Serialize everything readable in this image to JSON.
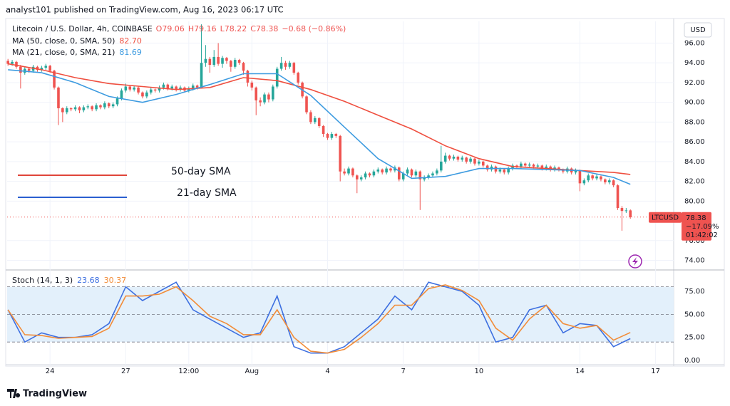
{
  "header": "analyst101 published on TradingView.com, Aug 16, 2023 06:17 UTC",
  "footer": "TradingView",
  "chart_data": [
    {
      "type": "candlestick",
      "title": "Litecoin / U.S. Dollar, 4h, COINBASE",
      "ohlc_text": [
        "O79.06",
        "H79.16",
        "L78.22",
        "C78.38",
        "−0.68 (−0.86%)"
      ],
      "currency": "USD",
      "up_color": "#26a69a",
      "down_color": "#ef5350",
      "candles": [
        [
          94.2,
          94.4,
          93.7,
          93.9
        ],
        [
          93.9,
          94.3,
          93.7,
          94.1
        ],
        [
          94.1,
          94.2,
          93.4,
          93.6
        ],
        [
          93.6,
          93.8,
          91.4,
          93.0
        ],
        [
          93.0,
          93.6,
          92.8,
          93.4
        ],
        [
          93.4,
          93.5,
          93.0,
          93.2
        ],
        [
          93.2,
          93.8,
          93.0,
          93.6
        ],
        [
          93.6,
          93.7,
          93.1,
          93.3
        ],
        [
          93.3,
          93.7,
          93.1,
          93.5
        ],
        [
          93.5,
          93.9,
          93.3,
          93.7
        ],
        [
          93.7,
          93.8,
          93.0,
          93.2
        ],
        [
          93.2,
          93.3,
          91.3,
          91.5
        ],
        [
          91.5,
          91.6,
          87.7,
          89.4
        ],
        [
          89.4,
          89.5,
          88.0,
          89.0
        ],
        [
          89.0,
          89.6,
          88.8,
          89.4
        ],
        [
          89.4,
          89.5,
          89.1,
          89.3
        ],
        [
          89.3,
          89.7,
          89.1,
          89.5
        ],
        [
          89.5,
          89.6,
          88.9,
          89.2
        ],
        [
          89.2,
          89.7,
          89.0,
          89.5
        ],
        [
          89.5,
          89.8,
          89.3,
          89.6
        ],
        [
          89.6,
          89.7,
          89.1,
          89.3
        ],
        [
          89.3,
          89.9,
          89.1,
          89.7
        ],
        [
          89.7,
          89.8,
          89.3,
          89.5
        ],
        [
          89.5,
          90.1,
          89.3,
          89.9
        ],
        [
          89.9,
          90.0,
          89.4,
          89.6
        ],
        [
          89.6,
          90.0,
          89.4,
          89.8
        ],
        [
          89.8,
          90.6,
          89.6,
          90.4
        ],
        [
          90.4,
          91.4,
          90.2,
          91.2
        ],
        [
          91.2,
          91.9,
          91.0,
          91.6
        ],
        [
          91.6,
          91.7,
          91.1,
          91.3
        ],
        [
          91.3,
          91.7,
          91.1,
          91.5
        ],
        [
          91.5,
          91.6,
          90.8,
          91.0
        ],
        [
          91.0,
          91.1,
          90.4,
          90.6
        ],
        [
          90.6,
          91.2,
          90.4,
          91.0
        ],
        [
          91.0,
          91.5,
          90.8,
          91.3
        ],
        [
          91.3,
          91.4,
          91.0,
          91.2
        ],
        [
          91.2,
          91.7,
          91.0,
          91.5
        ],
        [
          91.5,
          92.0,
          91.3,
          91.8
        ],
        [
          91.8,
          91.9,
          91.2,
          91.4
        ],
        [
          91.4,
          91.8,
          91.2,
          91.6
        ],
        [
          91.6,
          91.7,
          91.1,
          91.3
        ],
        [
          91.3,
          91.7,
          91.1,
          91.5
        ],
        [
          91.5,
          91.6,
          91.0,
          91.2
        ],
        [
          91.2,
          91.6,
          91.0,
          91.4
        ],
        [
          91.4,
          91.9,
          91.2,
          91.7
        ],
        [
          91.7,
          91.8,
          91.3,
          91.5
        ],
        [
          91.5,
          97.9,
          91.4,
          94.0
        ],
        [
          94.0,
          95.8,
          93.6,
          94.4
        ],
        [
          94.4,
          94.6,
          93.0,
          93.8
        ],
        [
          93.8,
          95.3,
          93.6,
          94.6
        ],
        [
          94.6,
          96.0,
          93.7,
          93.9
        ],
        [
          93.9,
          94.7,
          93.5,
          94.5
        ],
        [
          94.5,
          94.6,
          93.9,
          94.2
        ],
        [
          94.2,
          94.3,
          93.1,
          93.6
        ],
        [
          93.6,
          94.5,
          93.4,
          94.3
        ],
        [
          94.3,
          94.4,
          93.8,
          94.0
        ],
        [
          94.0,
          94.1,
          92.8,
          93.2
        ],
        [
          93.2,
          93.3,
          91.6,
          92.0
        ],
        [
          92.0,
          92.2,
          91.2,
          91.5
        ],
        [
          91.5,
          91.6,
          88.7,
          90.2
        ],
        [
          90.2,
          90.5,
          89.6,
          90.0
        ],
        [
          90.0,
          91.0,
          89.8,
          90.8
        ],
        [
          90.8,
          91.0,
          90.0,
          90.3
        ],
        [
          90.3,
          91.8,
          90.1,
          91.6
        ],
        [
          91.6,
          93.6,
          91.4,
          93.4
        ],
        [
          93.4,
          94.6,
          93.2,
          94.0
        ],
        [
          94.0,
          94.2,
          93.3,
          93.6
        ],
        [
          93.6,
          94.2,
          93.4,
          94.0
        ],
        [
          94.0,
          94.1,
          92.8,
          93.0
        ],
        [
          93.0,
          93.1,
          91.8,
          92.0
        ],
        [
          92.0,
          92.1,
          90.4,
          90.6
        ],
        [
          90.6,
          90.7,
          88.8,
          89.0
        ],
        [
          89.0,
          89.2,
          87.8,
          88.0
        ],
        [
          88.0,
          88.6,
          87.8,
          88.4
        ],
        [
          88.4,
          88.5,
          87.4,
          87.6
        ],
        [
          87.6,
          87.7,
          86.5,
          86.8
        ],
        [
          86.8,
          86.9,
          86.2,
          86.4
        ],
        [
          86.4,
          87.0,
          86.2,
          86.8
        ],
        [
          86.8,
          86.9,
          86.4,
          86.6
        ],
        [
          86.6,
          86.7,
          82.0,
          83.0
        ],
        [
          83.0,
          83.3,
          82.6,
          82.8
        ],
        [
          82.8,
          83.5,
          82.6,
          83.3
        ],
        [
          83.3,
          83.4,
          82.4,
          82.6
        ],
        [
          82.6,
          82.7,
          80.8,
          82.2
        ],
        [
          82.2,
          82.6,
          82.0,
          82.4
        ],
        [
          82.4,
          83.0,
          82.2,
          82.8
        ],
        [
          82.8,
          82.9,
          82.4,
          82.6
        ],
        [
          82.6,
          83.2,
          82.4,
          83.0
        ],
        [
          83.0,
          83.4,
          82.8,
          83.2
        ],
        [
          83.2,
          83.3,
          82.7,
          82.9
        ],
        [
          82.9,
          83.5,
          82.7,
          83.3
        ],
        [
          83.3,
          83.4,
          82.9,
          83.1
        ],
        [
          83.1,
          83.6,
          82.9,
          83.4
        ],
        [
          83.4,
          83.5,
          82.0,
          82.2
        ],
        [
          82.2,
          83.0,
          82.0,
          82.8
        ],
        [
          82.8,
          83.4,
          82.6,
          83.2
        ],
        [
          83.2,
          83.3,
          82.4,
          82.6
        ],
        [
          82.6,
          83.2,
          82.4,
          83.0
        ],
        [
          83.0,
          83.1,
          79.1,
          82.2
        ],
        [
          82.2,
          82.6,
          82.0,
          82.4
        ],
        [
          82.4,
          82.8,
          82.2,
          82.6
        ],
        [
          82.6,
          83.0,
          82.4,
          82.8
        ],
        [
          82.8,
          83.3,
          82.6,
          83.1
        ],
        [
          83.1,
          85.6,
          82.9,
          84.0
        ],
        [
          84.0,
          84.9,
          83.8,
          84.6
        ],
        [
          84.6,
          84.7,
          84.1,
          84.3
        ],
        [
          84.3,
          84.7,
          84.1,
          84.5
        ],
        [
          84.5,
          84.6,
          84.0,
          84.2
        ],
        [
          84.2,
          84.6,
          84.0,
          84.4
        ],
        [
          84.4,
          84.5,
          83.8,
          84.0
        ],
        [
          84.0,
          84.5,
          83.8,
          84.3
        ],
        [
          84.3,
          84.4,
          83.6,
          83.8
        ],
        [
          83.8,
          84.2,
          83.6,
          84.0
        ],
        [
          84.0,
          84.1,
          83.4,
          83.6
        ],
        [
          83.6,
          83.7,
          83.0,
          83.2
        ],
        [
          83.2,
          83.7,
          83.0,
          83.5
        ],
        [
          83.5,
          83.6,
          82.8,
          83.0
        ],
        [
          83.0,
          83.4,
          82.8,
          83.2
        ],
        [
          83.2,
          83.3,
          82.7,
          82.9
        ],
        [
          82.9,
          83.5,
          82.7,
          83.3
        ],
        [
          83.3,
          83.8,
          83.1,
          83.6
        ],
        [
          83.6,
          83.7,
          83.3,
          83.5
        ],
        [
          83.5,
          84.0,
          83.3,
          83.8
        ],
        [
          83.8,
          83.9,
          83.4,
          83.6
        ],
        [
          83.6,
          83.9,
          83.4,
          83.7
        ],
        [
          83.7,
          83.8,
          83.3,
          83.5
        ],
        [
          83.5,
          83.8,
          83.3,
          83.6
        ],
        [
          83.6,
          83.7,
          83.1,
          83.3
        ],
        [
          83.3,
          83.7,
          83.1,
          83.5
        ],
        [
          83.5,
          83.6,
          83.0,
          83.2
        ],
        [
          83.2,
          83.6,
          83.0,
          83.4
        ],
        [
          83.4,
          83.5,
          83.0,
          83.2
        ],
        [
          83.2,
          83.3,
          82.8,
          83.0
        ],
        [
          83.0,
          83.5,
          82.8,
          83.3
        ],
        [
          83.3,
          83.4,
          82.7,
          82.9
        ],
        [
          82.9,
          83.3,
          82.7,
          83.1
        ],
        [
          83.1,
          83.2,
          81.0,
          81.8
        ],
        [
          81.8,
          82.3,
          81.6,
          82.1
        ],
        [
          82.1,
          82.8,
          81.9,
          82.6
        ],
        [
          82.6,
          82.7,
          82.1,
          82.3
        ],
        [
          82.3,
          82.7,
          82.1,
          82.5
        ],
        [
          82.5,
          82.6,
          82.0,
          82.2
        ],
        [
          82.2,
          82.3,
          81.7,
          81.9
        ],
        [
          81.9,
          82.3,
          81.7,
          82.1
        ],
        [
          82.1,
          82.2,
          81.4,
          81.6
        ],
        [
          81.6,
          81.7,
          79.1,
          79.3
        ],
        [
          79.3,
          79.5,
          77.0,
          79.0
        ],
        [
          79.0,
          79.3,
          78.8,
          79.06
        ],
        [
          79.06,
          79.16,
          78.22,
          78.38
        ]
      ],
      "series": [
        {
          "name": "MA (50, close, 0, SMA, 50)",
          "last_value_label": "82.70",
          "color": "#ef4f3f",
          "x": [
            0,
            8,
            16,
            24,
            32,
            40,
            48,
            56,
            64,
            72,
            80,
            88,
            96,
            104,
            112,
            120,
            128,
            136,
            144,
            148
          ],
          "values": [
            93.9,
            93.3,
            92.5,
            91.9,
            91.6,
            91.3,
            91.5,
            92.5,
            92.2,
            91.3,
            90.1,
            88.7,
            87.3,
            85.6,
            84.3,
            83.5,
            83.3,
            83.1,
            82.9,
            82.7
          ]
        },
        {
          "name": "MA (21, close, 0, SMA, 21)",
          "last_value_label": "81.69",
          "color": "#3d9be0",
          "x": [
            0,
            8,
            16,
            24,
            32,
            40,
            48,
            56,
            64,
            72,
            80,
            88,
            96,
            104,
            112,
            120,
            128,
            136,
            144,
            148
          ],
          "values": [
            93.3,
            93.0,
            92.0,
            90.6,
            90.0,
            90.8,
            91.8,
            92.9,
            92.9,
            90.7,
            87.5,
            84.3,
            82.3,
            82.5,
            83.3,
            83.3,
            83.2,
            83.1,
            82.4,
            81.7
          ]
        }
      ],
      "annotations": [
        {
          "text": "50-day SMA",
          "color": "#e0453a"
        },
        {
          "text": "21-day SMA",
          "color": "#2a5fd0"
        }
      ],
      "last_price": 78.38,
      "last_label": "LTCUSD",
      "change_label": "−17.09%",
      "countdown": "01:42:02",
      "xlim": [
        -0.2,
        158.3
      ],
      "ylim": [
        73.1,
        98.2
      ],
      "grid": true,
      "yticks": [
        {
          "value": 96,
          "label": "96.00"
        },
        {
          "value": 94,
          "label": "94.00"
        },
        {
          "value": 92,
          "label": "92.00"
        },
        {
          "value": 90,
          "label": "90.00"
        },
        {
          "value": 88,
          "label": "88.00"
        },
        {
          "value": 86,
          "label": "86.00"
        },
        {
          "value": 84,
          "label": "84.00"
        },
        {
          "value": 82,
          "label": "82.00"
        },
        {
          "value": 80,
          "label": "80.00"
        },
        {
          "value": 76,
          "label": "76.00"
        },
        {
          "value": 74,
          "label": "74.00"
        }
      ],
      "xticks": [
        {
          "value": 10,
          "label": "24"
        },
        {
          "value": 28,
          "label": "27"
        },
        {
          "value": 43,
          "label": "12:00"
        },
        {
          "value": 58,
          "label": "Aug"
        },
        {
          "value": 76,
          "label": "4"
        },
        {
          "value": 94,
          "label": "7"
        },
        {
          "value": 112,
          "label": "10"
        },
        {
          "value": 136,
          "label": "14"
        },
        {
          "value": 154,
          "label": "17"
        }
      ]
    },
    {
      "type": "line",
      "title": "Stoch (14, 1, 3)",
      "series": [
        {
          "last_value_label": "23.68",
          "color": "#3d6fe0",
          "x": [
            0,
            4,
            8,
            12,
            16,
            20,
            24,
            28,
            32,
            36,
            40,
            44,
            48,
            52,
            56,
            60,
            64,
            68,
            72,
            76,
            80,
            84,
            88,
            92,
            96,
            100,
            104,
            108,
            112,
            116,
            120,
            124,
            128,
            132,
            136,
            140,
            144,
            148
          ],
          "values": [
            55,
            20,
            30,
            25,
            25,
            28,
            40,
            80,
            65,
            75,
            85,
            55,
            45,
            35,
            25,
            30,
            70,
            15,
            8,
            8,
            15,
            30,
            45,
            70,
            55,
            85,
            80,
            75,
            60,
            20,
            25,
            55,
            60,
            30,
            40,
            38,
            15,
            23.7
          ]
        },
        {
          "last_value_label": "30.37",
          "color": "#f28c38",
          "x": [
            0,
            4,
            8,
            12,
            16,
            20,
            24,
            28,
            32,
            36,
            40,
            44,
            48,
            52,
            56,
            60,
            64,
            68,
            72,
            76,
            80,
            84,
            88,
            92,
            96,
            100,
            104,
            108,
            112,
            116,
            120,
            124,
            128,
            132,
            136,
            140,
            144,
            148
          ],
          "values": [
            55,
            28,
            27,
            24,
            25,
            26,
            35,
            70,
            70,
            72,
            80,
            65,
            48,
            40,
            28,
            28,
            55,
            25,
            10,
            8,
            12,
            25,
            40,
            60,
            60,
            78,
            82,
            76,
            65,
            35,
            22,
            45,
            60,
            40,
            35,
            38,
            22,
            30.4
          ]
        }
      ],
      "band": [
        20,
        80
      ],
      "midline": 50,
      "band_color": "#e3f0fb",
      "ylim": [
        -4.6,
        97.5
      ],
      "yticks": [
        {
          "value": 0,
          "label": "0.00"
        },
        {
          "value": 25,
          "label": "25.00"
        },
        {
          "value": 50,
          "label": "50.00"
        },
        {
          "value": 75,
          "label": "75.00"
        }
      ]
    }
  ]
}
